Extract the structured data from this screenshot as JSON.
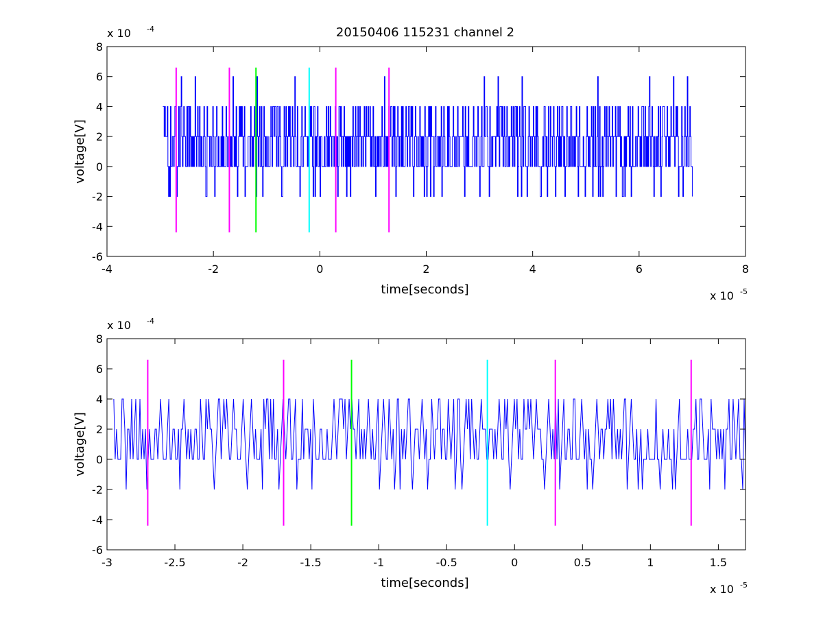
{
  "figure": {
    "title": "20150406 115231 channel 2"
  },
  "chart_data": [
    {
      "type": "line",
      "xlabel": "time[seconds]",
      "ylabel": "voltage[V]",
      "x_exponent_label": "x 10",
      "x_exponent": "-5",
      "y_exponent_label": "x 10",
      "y_exponent": "-4",
      "xlim": [
        -4e-05,
        8e-05
      ],
      "ylim": [
        -0.0006,
        0.0008
      ],
      "xticks": [
        -4e-05,
        -2e-05,
        0,
        2e-05,
        4e-05,
        6e-05,
        8e-05
      ],
      "xtick_labels": [
        "-4",
        "-2",
        "0",
        "2",
        "4",
        "6",
        "8"
      ],
      "yticks": [
        -0.0006,
        -0.0004,
        -0.0002,
        0,
        0.0002,
        0.0004,
        0.0006,
        0.0008
      ],
      "ytick_labels": [
        "-6",
        "-4",
        "-2",
        "0",
        "2",
        "4",
        "6",
        "8"
      ],
      "grid": false,
      "series": [
        {
          "color": "#0000ff",
          "x_start": -2.95e-05,
          "x_end": 7e-05,
          "n_points": 840,
          "style": "staircase",
          "values": [
            0.0002,
            0.0004,
            0.0002,
            0,
            0.0002,
            0.0004,
            0.0002,
            0,
            0.0002,
            -0.0002,
            0,
            0.0002,
            0.0004,
            0.0002,
            0,
            0.0002,
            0.0002,
            0,
            0.0002,
            0.0004,
            0.0002,
            0,
            -0.0002,
            0,
            0.0002,
            0.0004,
            0.0002,
            0,
            0.0002,
            0.0006,
            0.0002,
            0,
            0.0002,
            0.0004,
            0.0002,
            0,
            0.0002,
            -0.0002,
            0,
            0.0002,
            0.0004,
            0.0002,
            0,
            0.0002,
            0.0002,
            0,
            0.0002,
            0.0004,
            0.0002,
            0,
            0.0002,
            0.0006,
            0.0002,
            0,
            0.0002,
            0.0004,
            0.0002,
            0,
            -0.0002,
            0.0002
          ]
        },
        {
          "name": "",
          "color": "#ff00ff",
          "type": "vline",
          "x": -2.7e-05,
          "y_range": [
            -0.00044,
            0.00066
          ]
        },
        {
          "name": "",
          "color": "#ff00ff",
          "type": "vline",
          "x": -1.7e-05,
          "y_range": [
            -0.00044,
            0.00066
          ]
        },
        {
          "name": "",
          "color": "#00ff00",
          "type": "vline",
          "x": -1.2e-05,
          "y_range": [
            -0.00044,
            0.00066
          ]
        },
        {
          "name": "",
          "color": "#00ffff",
          "type": "vline",
          "x": -2e-06,
          "y_range": [
            -0.00044,
            0.00066
          ]
        },
        {
          "name": "",
          "color": "#ff00ff",
          "type": "vline",
          "x": 3e-06,
          "y_range": [
            -0.00044,
            0.00066
          ]
        },
        {
          "name": "",
          "color": "#ff00ff",
          "type": "vline",
          "x": 1.3e-05,
          "y_range": [
            -0.00044,
            0.00066
          ]
        }
      ]
    },
    {
      "type": "line",
      "xlabel": "time[seconds]",
      "ylabel": "voltage[V]",
      "x_exponent_label": "x 10",
      "x_exponent": "-5",
      "y_exponent_label": "x 10",
      "y_exponent": "-4",
      "xlim": [
        -3e-05,
        1.7e-05
      ],
      "ylim": [
        -0.0006,
        0.0008
      ],
      "xticks": [
        -3e-05,
        -2.5e-05,
        -2e-05,
        -1.5e-05,
        -1e-05,
        -5e-06,
        0,
        5e-06,
        1e-05,
        1.5e-05
      ],
      "xtick_labels": [
        "-3",
        "-2.5",
        "-2",
        "-1.5",
        "-1",
        "-0.5",
        "0",
        "0.5",
        "1",
        "1.5"
      ],
      "yticks": [
        -0.0006,
        -0.0004,
        -0.0002,
        0,
        0.0002,
        0.0004,
        0.0006,
        0.0008
      ],
      "ytick_labels": [
        "-6",
        "-4",
        "-2",
        "0",
        "2",
        "4",
        "6",
        "8"
      ],
      "grid": false,
      "series": [
        {
          "color": "#0000ff",
          "x_start": -2.95e-05,
          "x_end": 1.7e-05,
          "n_points": 460,
          "style": "line",
          "values": [
            0.0002,
            0,
            0.0002,
            0.0004,
            0.0002,
            0,
            0.0002,
            0.0004,
            0.0002,
            0,
            0.0002,
            0.0002,
            0,
            -0.0002,
            0,
            0.0002,
            0.0004,
            0.0002,
            0,
            0.0002,
            0.0004,
            0.0002,
            0,
            0.0002,
            -0.0002,
            0,
            0.0002,
            0.0004,
            0.0002,
            0,
            0.0002,
            0.0002,
            0,
            0.0002,
            0.0004,
            0.0002,
            0,
            -0.0002,
            0,
            0.0002,
            0.0004,
            0.0002,
            0,
            0.0002,
            0.0004,
            0.0002,
            0,
            0.0002,
            -0.0002,
            0,
            0.0002,
            0.0004,
            0.0002,
            0,
            0.0002,
            0.0002,
            0,
            0.0002,
            0.0004,
            0.0002
          ]
        },
        {
          "name": "",
          "color": "#ff00ff",
          "type": "vline",
          "x": -2.7e-05,
          "y_range": [
            -0.00044,
            0.00066
          ]
        },
        {
          "name": "",
          "color": "#ff00ff",
          "type": "vline",
          "x": -1.7e-05,
          "y_range": [
            -0.00044,
            0.00066
          ]
        },
        {
          "name": "",
          "color": "#00ff00",
          "type": "vline",
          "x": -1.2e-05,
          "y_range": [
            -0.00044,
            0.00066
          ]
        },
        {
          "name": "",
          "color": "#00ffff",
          "type": "vline",
          "x": -2e-06,
          "y_range": [
            -0.00044,
            0.00066
          ]
        },
        {
          "name": "",
          "color": "#ff00ff",
          "type": "vline",
          "x": 3e-06,
          "y_range": [
            -0.00044,
            0.00066
          ]
        },
        {
          "name": "",
          "color": "#ff00ff",
          "type": "vline",
          "x": 1.3e-05,
          "y_range": [
            -0.00044,
            0.00066
          ]
        }
      ]
    }
  ]
}
